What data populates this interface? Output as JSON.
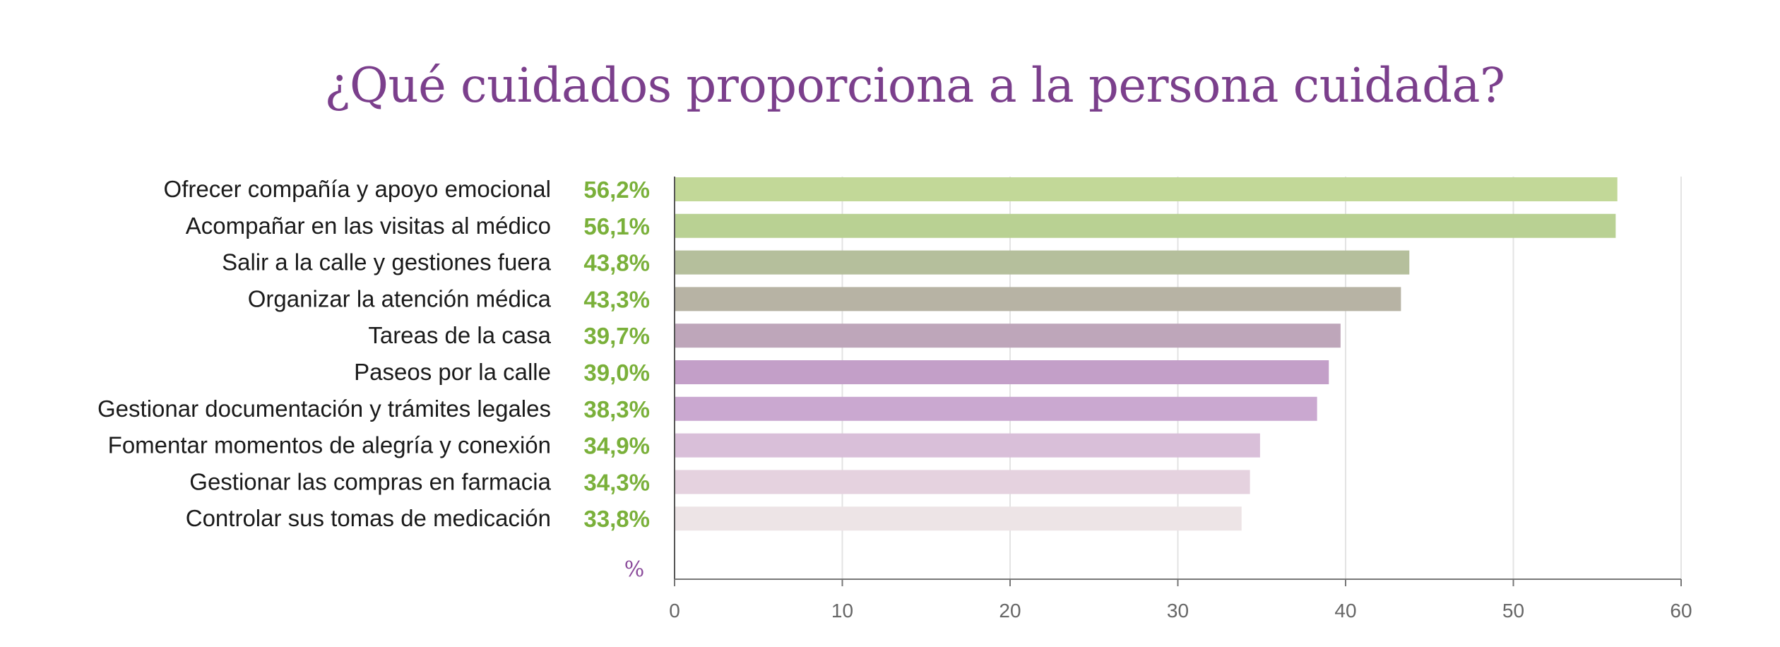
{
  "chart_data": {
    "type": "bar",
    "orientation": "horizontal",
    "title": "¿Qué cuidados proporciona a la persona cuidada?",
    "categories": [
      "Ofrecer compañía y apoyo emocional",
      "Acompañar en las visitas al médico",
      "Salir a la calle y gestiones fuera",
      "Organizar la atención médica",
      "Tareas de la casa",
      "Paseos por la calle",
      "Gestionar documentación y trámites legales",
      "Fomentar momentos de alegría y conexión",
      "Gestionar las compras en farmacia",
      "Controlar sus tomas de medicación"
    ],
    "values": [
      56.2,
      56.1,
      43.8,
      43.3,
      39.7,
      39.0,
      38.3,
      34.9,
      34.3,
      33.8
    ],
    "value_labels": [
      "56,2%",
      "56,1%",
      "43,8%",
      "43,3%",
      "39,7%",
      "39,0%",
      "38,3%",
      "34,9%",
      "34,3%",
      "33,8%"
    ],
    "bar_colors": [
      "#c2d898",
      "#b9d193",
      "#b5bf9c",
      "#b7b3a4",
      "#bea6ba",
      "#c39fc8",
      "#caa8d0",
      "#d9bfd9",
      "#e5d2df",
      "#ede4e6"
    ],
    "value_label_color": "#7ab03a",
    "xlim": [
      0,
      60
    ],
    "xticks": [
      0,
      10,
      20,
      30,
      40,
      50,
      60
    ],
    "xtick_labels": [
      "0",
      "10",
      "20",
      "30",
      "40",
      "50",
      "60"
    ],
    "unit_label": "%",
    "xlabel": "",
    "ylabel": "",
    "grid": true
  }
}
